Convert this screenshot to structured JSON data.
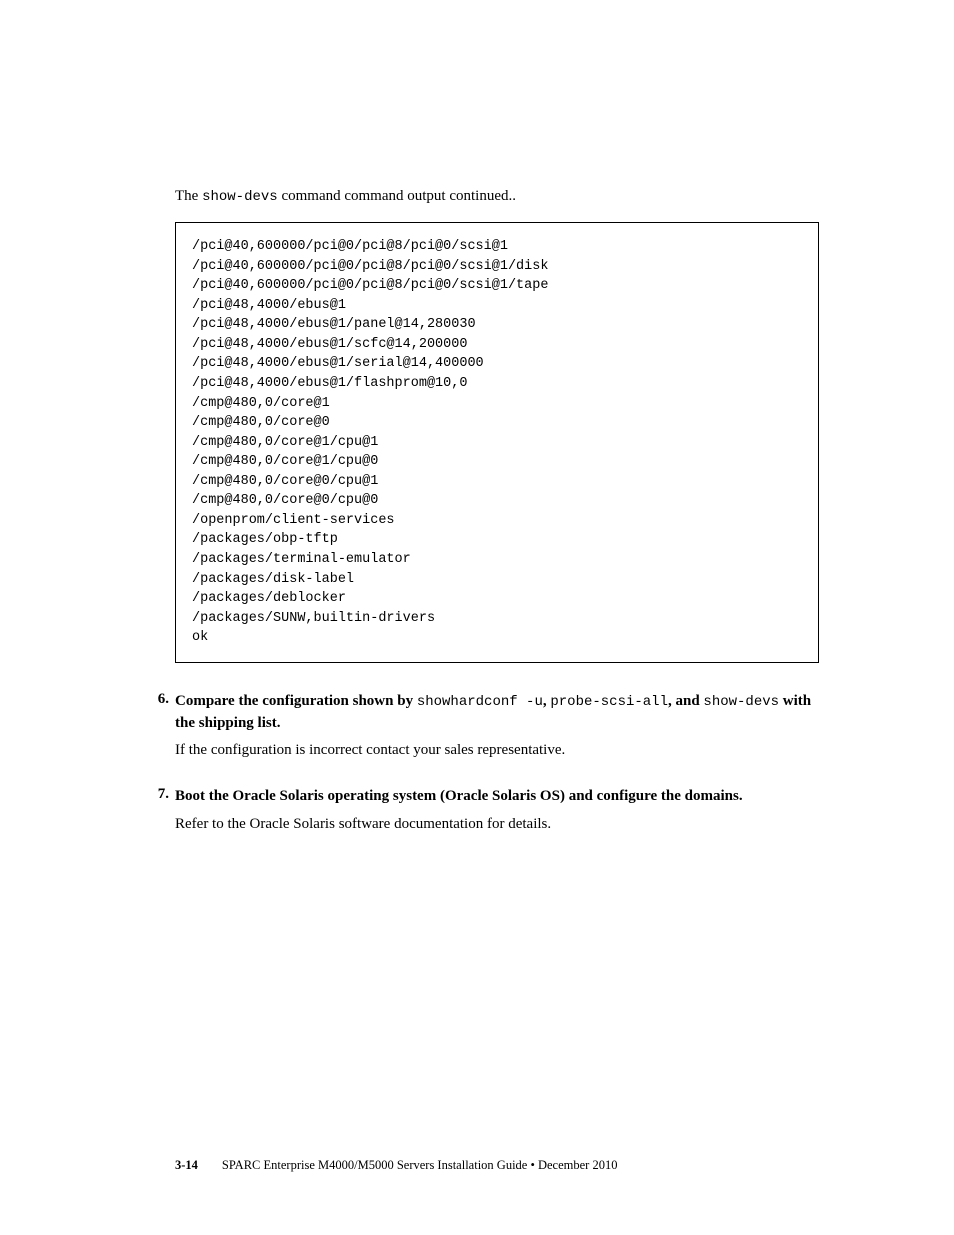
{
  "intro": {
    "prefix": "The ",
    "command": "show-devs",
    "suffix": " command command output continued.."
  },
  "code_lines": [
    "/pci@40,600000/pci@0/pci@8/pci@0/scsi@1",
    "/pci@40,600000/pci@0/pci@8/pci@0/scsi@1/disk",
    "/pci@40,600000/pci@0/pci@8/pci@0/scsi@1/tape",
    "/pci@48,4000/ebus@1",
    "/pci@48,4000/ebus@1/panel@14,280030",
    "/pci@48,4000/ebus@1/scfc@14,200000",
    "/pci@48,4000/ebus@1/serial@14,400000",
    "/pci@48,4000/ebus@1/flashprom@10,0",
    "/cmp@480,0/core@1",
    "/cmp@480,0/core@0",
    "/cmp@480,0/core@1/cpu@1",
    "/cmp@480,0/core@1/cpu@0",
    "/cmp@480,0/core@0/cpu@1",
    "/cmp@480,0/core@0/cpu@0",
    "/openprom/client-services",
    "/packages/obp-tftp",
    "/packages/terminal-emulator",
    "/packages/disk-label",
    "/packages/deblocker",
    "/packages/SUNW,builtin-drivers",
    "ok"
  ],
  "steps": [
    {
      "num": "6.",
      "parts": [
        {
          "t": "bold",
          "v": "Compare the configuration shown by "
        },
        {
          "t": "mono",
          "v": "showhardconf -u"
        },
        {
          "t": "bold",
          "v": ", "
        },
        {
          "t": "mono",
          "v": "probe-scsi-all"
        },
        {
          "t": "bold",
          "v": ", and "
        },
        {
          "t": "mono",
          "v": "show-devs"
        },
        {
          "t": "bold",
          "v": " with the shipping list."
        }
      ],
      "desc": "If the configuration is incorrect contact your sales representative."
    },
    {
      "num": "7.",
      "parts": [
        {
          "t": "bold",
          "v": "Boot the Oracle Solaris operating system (Oracle Solaris OS) and configure the domains."
        }
      ],
      "desc": "Refer to the Oracle Solaris software documentation for details."
    }
  ],
  "footer": {
    "pagenum": "3-14",
    "text": "SPARC Enterprise M4000/M5000 Servers Installation Guide • December 2010"
  }
}
